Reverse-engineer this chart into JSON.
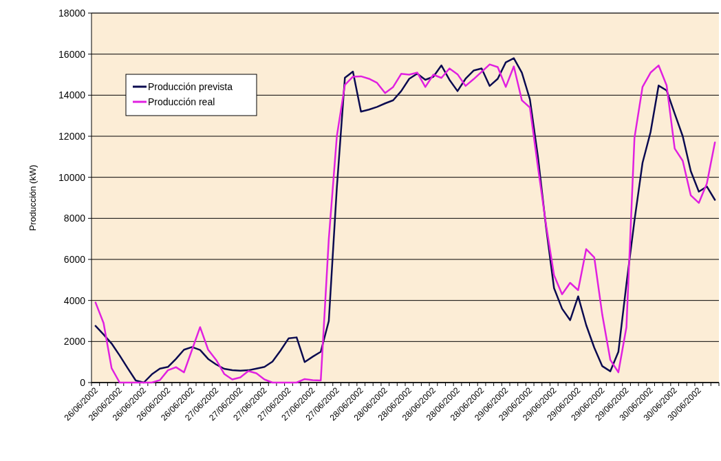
{
  "chart_data": {
    "type": "line",
    "ylabel": "Producción (kW)",
    "categories": [
      "26/06/2002",
      null,
      null,
      "26/06/2002",
      null,
      null,
      "26/06/2002",
      null,
      null,
      "26/06/2002",
      null,
      null,
      "26/06/2002",
      null,
      null,
      "27/06/2002",
      null,
      null,
      "27/06/2002",
      null,
      null,
      "27/06/2002",
      null,
      null,
      "27/06/2002",
      null,
      null,
      "27/06/2002",
      null,
      null,
      "27/06/2002",
      null,
      null,
      "28/06/2002",
      null,
      null,
      "28/06/2002",
      null,
      null,
      "28/06/2002",
      null,
      null,
      "28/06/2002",
      null,
      null,
      "28/06/2002",
      null,
      null,
      "28/06/2002",
      null,
      null,
      "29/06/2002",
      null,
      null,
      "29/06/2002",
      null,
      null,
      "29/06/2002",
      null,
      null,
      "29/06/2002",
      null,
      null,
      "29/06/2002",
      null,
      null,
      "29/06/2002",
      null,
      null,
      "30/06/2002",
      null,
      null,
      "30/06/2002",
      null,
      null,
      "30/06/2002",
      null,
      null
    ],
    "series": [
      {
        "name": "Producción prevista",
        "color": "#0a0a50",
        "values": [
          2760,
          2340,
          1900,
          1320,
          700,
          100,
          0,
          400,
          680,
          760,
          1150,
          1600,
          1730,
          1590,
          1150,
          880,
          670,
          600,
          580,
          600,
          680,
          760,
          1020,
          1560,
          2150,
          2200,
          1000,
          1260,
          1500,
          3000,
          9500,
          14850,
          15150,
          13200,
          13300,
          13430,
          13600,
          13750,
          14200,
          14800,
          15050,
          14750,
          14900,
          15450,
          14750,
          14200,
          14800,
          15200,
          15300,
          14450,
          14800,
          15600,
          15800,
          15100,
          13800,
          11000,
          7600,
          4600,
          3600,
          3040,
          4200,
          2800,
          1700,
          800,
          550,
          1500,
          4800,
          7900,
          10700,
          12200,
          14470,
          14230,
          13100,
          12000,
          10300,
          9300,
          9550,
          8900
        ]
      },
      {
        "name": "Producción real",
        "color": "#e020e0",
        "values": [
          3900,
          2900,
          700,
          0,
          0,
          0,
          0,
          0,
          120,
          600,
          750,
          500,
          1600,
          2700,
          1600,
          1100,
          420,
          150,
          250,
          560,
          450,
          150,
          0,
          0,
          0,
          0,
          170,
          120,
          100,
          7000,
          12000,
          14500,
          14900,
          14920,
          14800,
          14600,
          14100,
          14400,
          15040,
          15000,
          15100,
          14400,
          15000,
          14840,
          15300,
          15020,
          14450,
          14780,
          15140,
          15500,
          15370,
          14400,
          15400,
          13750,
          13400,
          10500,
          7700,
          5230,
          4300,
          4860,
          4500,
          6500,
          6100,
          3300,
          1100,
          500,
          2700,
          11920,
          14400,
          15100,
          15450,
          14470,
          11400,
          10800,
          9120,
          8750,
          9700,
          11700
        ]
      }
    ],
    "ylim": [
      0,
      18000
    ],
    "yticks": [
      0,
      2000,
      4000,
      6000,
      8000,
      10000,
      12000,
      14000,
      16000,
      18000
    ],
    "grid": "y",
    "legend": "top left",
    "marker": "none",
    "line_style": "solid"
  }
}
